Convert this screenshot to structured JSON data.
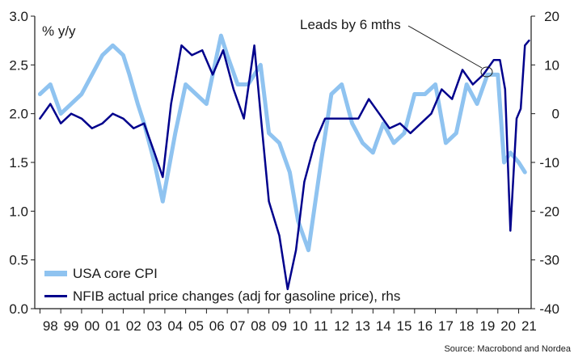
{
  "chart_data": {
    "type": "line",
    "ylabel": "% y/y",
    "source": "Source: Macrobond and Nordea",
    "annotation": "Leads by 6 mths",
    "x_range": [
      1997.75,
      2021.6
    ],
    "ylim_left": [
      0,
      3.0
    ],
    "ylim_right": [
      -40,
      20
    ],
    "y_ticks_left": [
      "0.0",
      "0.5",
      "1.0",
      "1.5",
      "2.0",
      "2.5",
      "3.0"
    ],
    "y_ticks_right": [
      "-40",
      "-30",
      "-20",
      "-10",
      "0",
      "10",
      "20"
    ],
    "x_ticks": [
      "98",
      "99",
      "00",
      "01",
      "02",
      "03",
      "04",
      "05",
      "06",
      "07",
      "08",
      "09",
      "10",
      "11",
      "12",
      "13",
      "14",
      "15",
      "16",
      "17",
      "18",
      "19",
      "20",
      "21"
    ],
    "grid": false,
    "legend_position": "bottom-left",
    "colors": {
      "core_cpi": "#8fc3f0",
      "nfib": "#00008c"
    },
    "series": [
      {
        "name": "USA core CPI",
        "axis": "left",
        "x": [
          1998.0,
          1998.5,
          1999.0,
          1999.5,
          2000.0,
          2000.5,
          2001.0,
          2001.5,
          2002.0,
          2002.3,
          2002.7,
          2003.0,
          2003.5,
          2003.9,
          2004.5,
          2005.0,
          2005.5,
          2006.0,
          2006.7,
          2007.0,
          2007.5,
          2008.0,
          2008.6,
          2009.0,
          2009.5,
          2010.0,
          2010.4,
          2010.9,
          2011.5,
          2012.0,
          2012.5,
          2013.0,
          2013.5,
          2014.0,
          2014.5,
          2015.0,
          2015.5,
          2016.0,
          2016.5,
          2017.0,
          2017.5,
          2018.0,
          2018.5,
          2019.0,
          2019.5,
          2020.0,
          2020.3,
          2020.6,
          2021.0,
          2021.3
        ],
        "values": [
          2.2,
          2.3,
          2.0,
          2.1,
          2.2,
          2.4,
          2.6,
          2.7,
          2.6,
          2.4,
          2.1,
          1.9,
          1.5,
          1.1,
          1.8,
          2.3,
          2.2,
          2.1,
          2.8,
          2.6,
          2.3,
          2.3,
          2.5,
          1.8,
          1.7,
          1.4,
          0.9,
          0.6,
          1.5,
          2.2,
          2.3,
          1.9,
          1.7,
          1.6,
          1.9,
          1.7,
          1.8,
          2.2,
          2.2,
          2.3,
          1.7,
          1.8,
          2.3,
          2.1,
          2.4,
          2.4,
          1.5,
          1.6,
          1.5,
          1.4
        ]
      },
      {
        "name": "NFIB actual price changes (adj for gasoline price), rhs",
        "axis": "right",
        "x": [
          1998.0,
          1998.5,
          1999.0,
          1999.5,
          2000.0,
          2000.5,
          2001.0,
          2001.5,
          2002.0,
          2002.5,
          2003.0,
          2003.5,
          2003.9,
          2004.3,
          2004.8,
          2005.3,
          2005.8,
          2006.3,
          2006.8,
          2007.3,
          2007.8,
          2008.3,
          2008.6,
          2009.0,
          2009.5,
          2009.9,
          2010.3,
          2010.7,
          2011.2,
          2011.7,
          2012.3,
          2012.8,
          2013.3,
          2013.8,
          2014.3,
          2014.8,
          2015.3,
          2015.8,
          2016.3,
          2016.8,
          2017.3,
          2017.8,
          2018.3,
          2018.8,
          2019.3,
          2019.8,
          2020.1,
          2020.35,
          2020.6,
          2020.9,
          2021.1,
          2021.3,
          2021.5
        ],
        "values": [
          -1,
          2,
          -2,
          0,
          -1,
          -3,
          -2,
          0,
          -1,
          -3,
          -2,
          -8,
          -13,
          2,
          14,
          12,
          13,
          8,
          13,
          5,
          -1,
          14,
          0,
          -18,
          -25,
          -36,
          -28,
          -14,
          -6,
          -1,
          -1,
          -1,
          -1,
          3,
          0,
          -3,
          -2,
          -4,
          -2,
          0,
          5,
          3,
          9,
          6,
          8,
          11,
          11,
          5,
          -24,
          -1,
          1,
          14,
          15
        ]
      }
    ]
  }
}
